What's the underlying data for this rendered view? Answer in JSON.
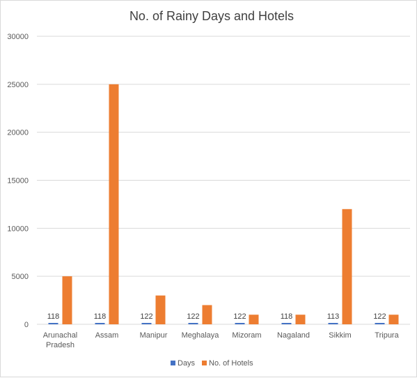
{
  "chart_data": {
    "type": "bar",
    "title": "No. of Rainy Days and Hotels",
    "categories": [
      [
        "Arunachal",
        "Pradesh"
      ],
      [
        "Assam"
      ],
      [
        "Manipur"
      ],
      [
        "Meghalaya"
      ],
      [
        "Mizoram"
      ],
      [
        "Nagaland"
      ],
      [
        "Sikkim"
      ],
      [
        "Tripura"
      ]
    ],
    "series": [
      {
        "name": "Days",
        "values": [
          118,
          118,
          122,
          122,
          122,
          118,
          113,
          122
        ],
        "color": "#4472c4",
        "data_labels": true
      },
      {
        "name": "No. of Hotels",
        "values": [
          5000,
          25000,
          3000,
          2000,
          1000,
          1000,
          12000,
          1000
        ],
        "color": "#ed7d31",
        "data_labels": false
      }
    ],
    "ylim": [
      0,
      30000
    ],
    "yticks": [
      "0",
      "5000",
      "10000",
      "15000",
      "20000",
      "25000",
      "30000"
    ],
    "grid": true,
    "legend": "bottom"
  }
}
